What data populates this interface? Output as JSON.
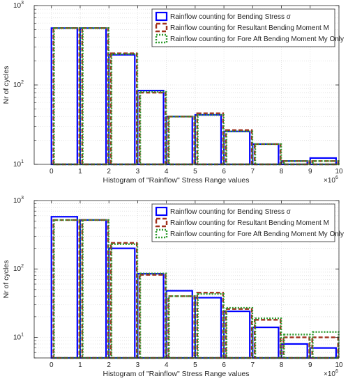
{
  "colors": {
    "series1": "#0000ff",
    "series2": "#a0301c",
    "series3": "#2e9a2e",
    "text": "#262626",
    "axis": "#262626",
    "grid": "#e3e3e3",
    "bg": "#ffffff"
  },
  "chart_data": [
    {
      "type": "bar",
      "xlabel": "Histogram of \"Rainflow\" Stress Range values",
      "ylabel": "Nr of cycles",
      "x_exponent": "×10",
      "x_exponent_power": "6",
      "y_scale": "log",
      "grid": true,
      "legend": "top-right",
      "xlim": [
        -0.6,
        10
      ],
      "ylim": [
        10,
        1000
      ],
      "x_ticks": [
        0,
        1,
        2,
        3,
        4,
        5,
        6,
        7,
        8,
        9,
        10
      ],
      "x_tick_labels": [
        "0",
        "1",
        "2",
        "3",
        "4",
        "5",
        "6",
        "7",
        "8",
        "9",
        "10"
      ],
      "y_ticks": [
        10,
        100,
        1000
      ],
      "y_tick_labels": [
        {
          "base": "10",
          "exp": "1"
        },
        {
          "base": "10",
          "exp": "2"
        },
        {
          "base": "10",
          "exp": "3"
        }
      ],
      "categories": [
        0,
        1,
        2,
        3,
        4,
        5,
        6,
        7,
        8,
        9
      ],
      "series": [
        {
          "name": "Rainflow counting for Bending Stress σ",
          "values": [
            520,
            520,
            240,
            85,
            40,
            42,
            26,
            18,
            11,
            12
          ]
        },
        {
          "name": "Rainflow counting for Resultant Bending Moment M",
          "values": [
            520,
            520,
            250,
            80,
            40,
            44,
            27,
            18,
            11,
            11
          ]
        },
        {
          "name": "Rainflow counting for Fore Aft Bending Moment My Only",
          "values": [
            520,
            520,
            245,
            82,
            40,
            42,
            26,
            18,
            11,
            11
          ]
        }
      ]
    },
    {
      "type": "bar",
      "xlabel": "Histogram of \"Rainflow\" Stress Range values",
      "ylabel": "Nr of cycles",
      "x_exponent": "×10",
      "x_exponent_power": "6",
      "y_scale": "log",
      "grid": true,
      "legend": "top-right",
      "xlim": [
        -0.6,
        10
      ],
      "ylim": [
        5,
        1000
      ],
      "x_ticks": [
        0,
        1,
        2,
        3,
        4,
        5,
        6,
        7,
        8,
        9,
        10
      ],
      "x_tick_labels": [
        "0",
        "1",
        "2",
        "3",
        "4",
        "5",
        "6",
        "7",
        "8",
        "9",
        "10"
      ],
      "y_ticks": [
        10,
        100,
        1000
      ],
      "y_tick_labels": [
        {
          "base": "10",
          "exp": "1"
        },
        {
          "base": "10",
          "exp": "2"
        },
        {
          "base": "10",
          "exp": "3"
        }
      ],
      "categories": [
        0,
        1,
        2,
        3,
        4,
        5,
        6,
        7,
        8,
        9
      ],
      "series": [
        {
          "name": "Rainflow counting for Bending Stress σ",
          "values": [
            580,
            520,
            200,
            85,
            48,
            38,
            24,
            14,
            8,
            7
          ]
        },
        {
          "name": "Rainflow counting for Resultant Bending Moment M",
          "values": [
            520,
            520,
            240,
            82,
            40,
            45,
            26,
            18,
            10,
            10
          ]
        },
        {
          "name": "Rainflow counting for Fore Aft Bending Moment My Only",
          "values": [
            520,
            520,
            230,
            86,
            40,
            43,
            27,
            19,
            11,
            12
          ]
        }
      ]
    }
  ]
}
